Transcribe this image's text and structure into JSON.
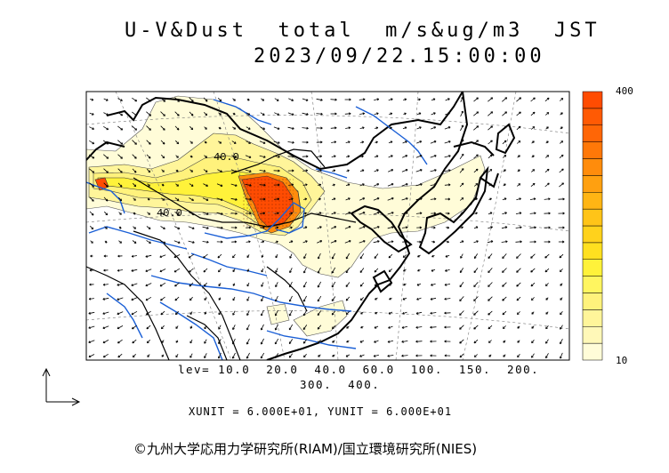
{
  "header": {
    "title": "U-V&Dust  total  m/s&ug/m3  JST",
    "datetime": "2023/09/22.15:00:00"
  },
  "map": {
    "contour_labels": [
      "40.0",
      "40.0"
    ],
    "colors": {
      "ocean": "#ffffff",
      "coast": "#000000",
      "river": "#1a5fd6",
      "arrow": "#000000"
    }
  },
  "colorbar": {
    "max_label": "400",
    "min_label": "10",
    "colors": [
      "#fffcd8",
      "#fff8b8",
      "#fff59a",
      "#fff27c",
      "#fff560",
      "#fff23a",
      "#ffe020",
      "#ffd21c",
      "#ffc418",
      "#ffb514",
      "#ffa010",
      "#ff8c0c",
      "#ff7808",
      "#ff6606",
      "#ff5a04",
      "#ff4c02"
    ]
  },
  "levels": {
    "line1": "lev= 10.0  20.0  40.0  60.0  100.  150.  200.",
    "line2": "300.  400."
  },
  "units": "XUNIT = 6.000E+01, YUNIT = 6.000E+01",
  "copyright": "©九州大学応用力学研究所(RIAM)/国立環境研究所(NIES)"
}
